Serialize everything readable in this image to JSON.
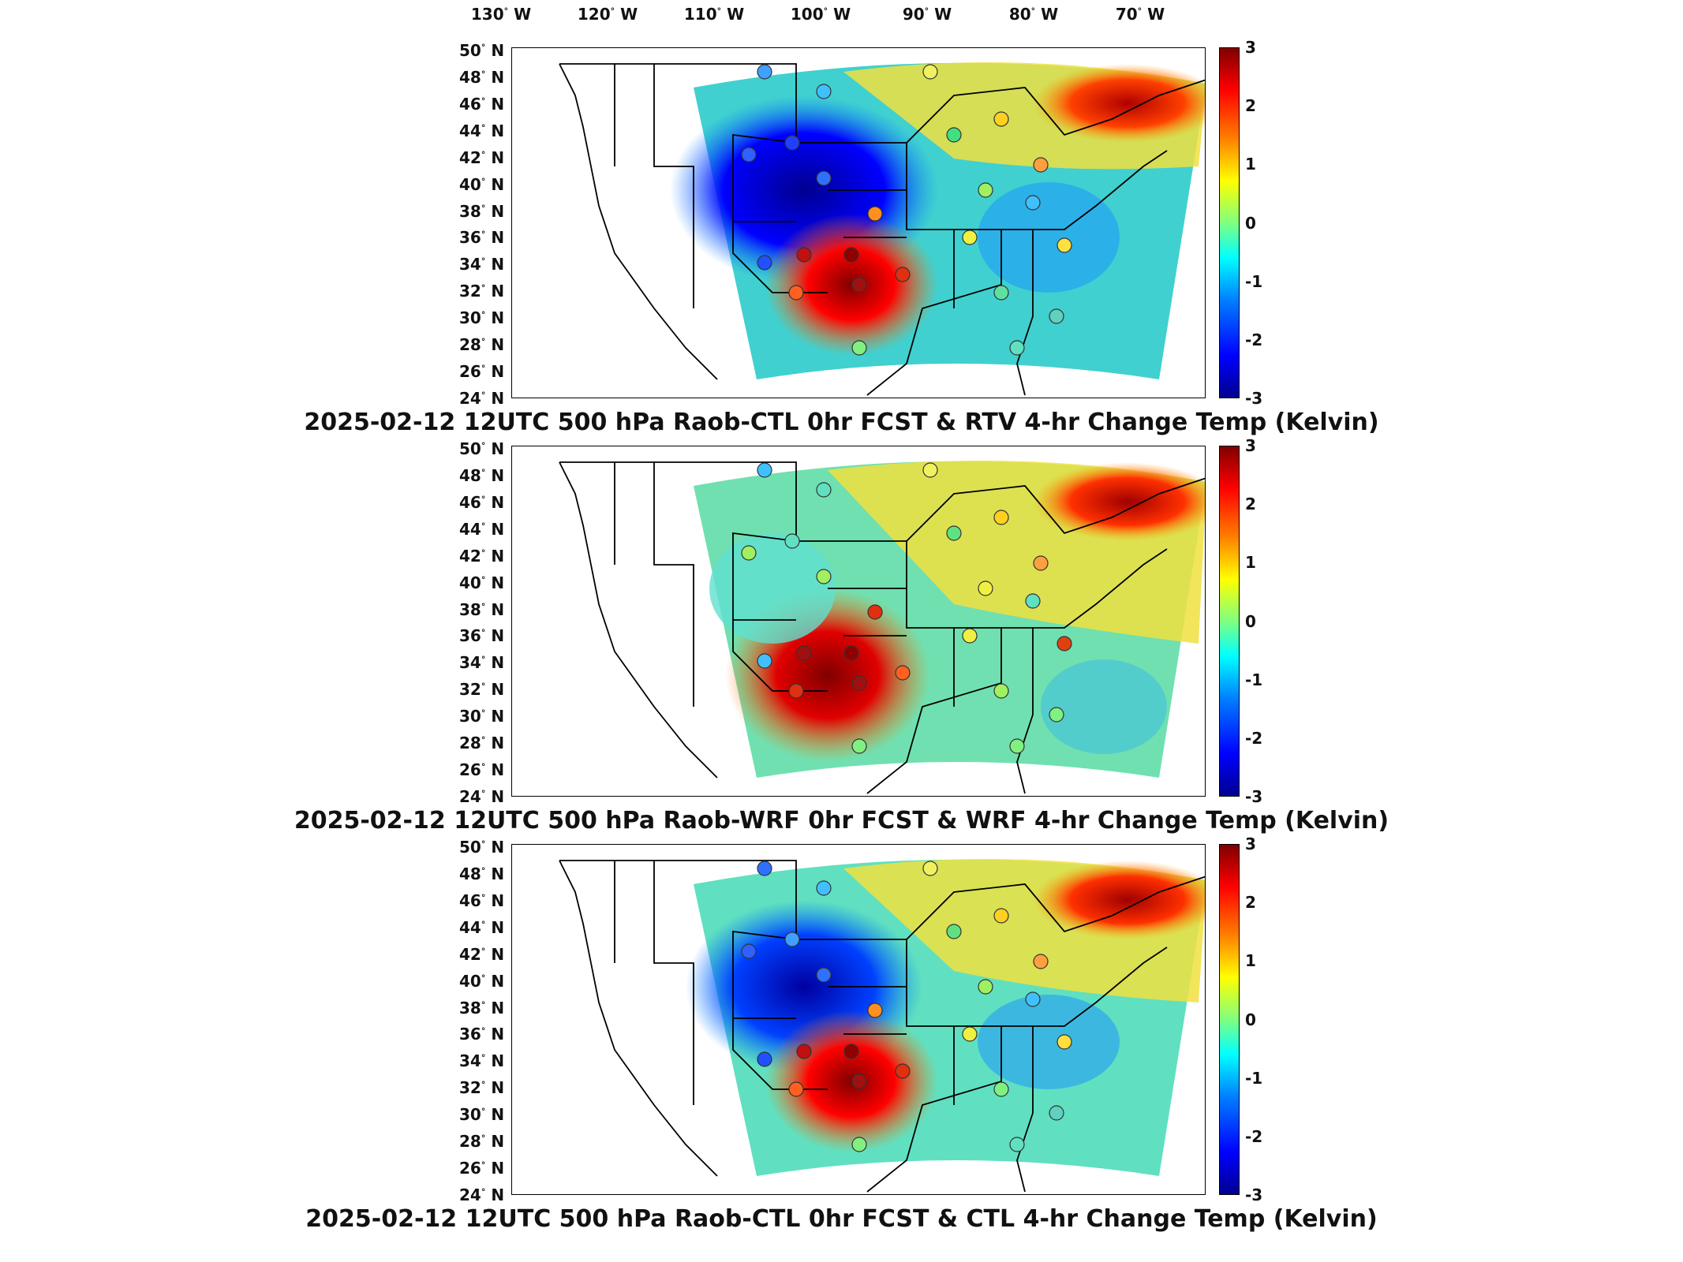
{
  "lon_labels": [
    "130",
    "120",
    "110",
    "100",
    "90",
    "80",
    "70"
  ],
  "lon_suffix": "W",
  "lat_labels": [
    "50",
    "48",
    "46",
    "44",
    "42",
    "40",
    "38",
    "36",
    "34",
    "32",
    "30",
    "28",
    "26",
    "24"
  ],
  "lat_suffix": "N",
  "colorbar_ticks": [
    "3",
    "2",
    "1",
    "0",
    "-1",
    "-2",
    "-3"
  ],
  "colorbar": {
    "min": -3,
    "max": 3,
    "colors": [
      "#00008f",
      "#0000ff",
      "#0080ff",
      "#00ffff",
      "#80ff80",
      "#ffff00",
      "#ff8000",
      "#ff0000",
      "#800000"
    ]
  },
  "panels": [
    {
      "title": "2025-02-12 12UTC 500 hPa Raob-CTL 0hr FCST & RTV 4-hr Change Temp (Kelvin)"
    },
    {
      "title": "2025-02-12 12UTC 500 hPa Raob-WRF 0hr FCST & WRF 4-hr Change Temp (Kelvin)"
    },
    {
      "title": "2025-02-12 12UTC 500 hPa Raob-CTL 0hr FCST & CTL 4-hr Change Temp (Kelvin)"
    }
  ]
}
